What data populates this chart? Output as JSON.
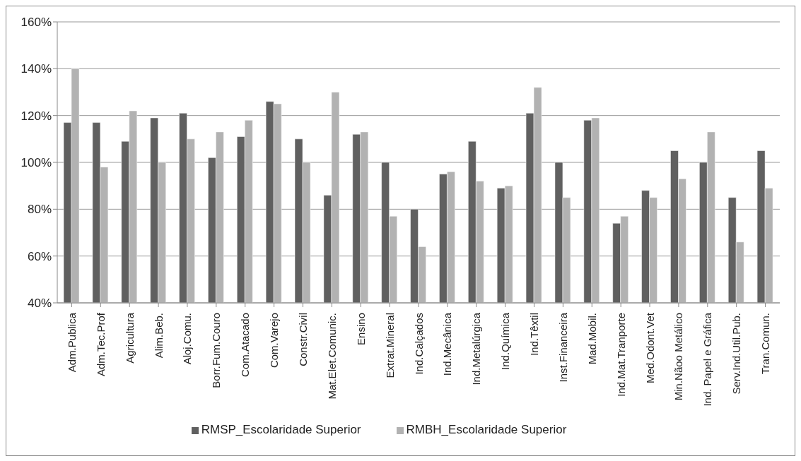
{
  "chart_data": {
    "type": "bar",
    "categories": [
      "Adm.Publica",
      "Adm.Tec.Prof",
      "Agricultura",
      "Alim.Beb.",
      "Aloj.Comu.",
      "Borr.Fum.Couro",
      "Com.Atacado",
      "Com.Varejo",
      "Constr.Civil",
      "Mat.Elet.Comunic.",
      "Ensino",
      "Extrat.Mineral",
      "Ind.Calçados",
      "Ind.Mecânica",
      "Ind.Metalúrgica",
      "Ind.Química",
      "Ind.Têxtil",
      "Inst.Financeira",
      "Mad.Mobil.",
      "Ind.Mat.Tranporte",
      "Med.Odont.Vet",
      "Min.Nãoo Metálico",
      "Ind. Papel e Gráfica",
      "Serv.Ind.Util.Pub.",
      "Tran.Comun."
    ],
    "series": [
      {
        "name": "RMSP_Escolaridade Superior",
        "color": "#606060",
        "values": [
          117,
          117,
          109,
          119,
          121,
          102,
          111,
          126,
          110,
          86,
          112,
          100,
          80,
          95,
          109,
          89,
          121,
          100,
          118,
          74,
          88,
          105,
          100,
          85,
          105
        ]
      },
      {
        "name": "RMBH_Escolaridade Superior",
        "color": "#b2b2b2",
        "values": [
          140,
          98,
          122,
          100,
          110,
          113,
          118,
          125,
          100,
          130,
          113,
          77,
          64,
          96,
          92,
          90,
          132,
          85,
          119,
          77,
          85,
          93,
          113,
          66,
          89
        ]
      }
    ],
    "ylim": [
      40,
      160
    ],
    "yticks": [
      {
        "value": 40,
        "label": "40%"
      },
      {
        "value": 60,
        "label": "60%"
      },
      {
        "value": 80,
        "label": "80%"
      },
      {
        "value": 100,
        "label": "100%"
      },
      {
        "value": 120,
        "label": "120%"
      },
      {
        "value": 140,
        "label": "140%"
      },
      {
        "value": 160,
        "label": "160%"
      }
    ],
    "grid": "y",
    "legend": "bottom"
  }
}
